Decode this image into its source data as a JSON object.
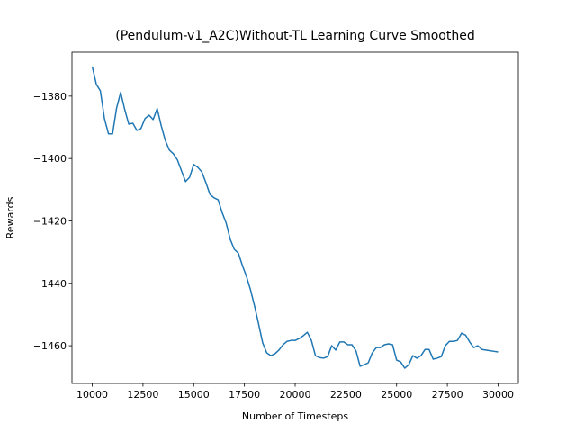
{
  "chart_data": {
    "type": "line",
    "title": "(Pendulum-v1_A2C)Without-TL Learning Curve Smoothed",
    "xlabel": "Number of Timesteps",
    "ylabel": "Rewards",
    "x": [
      10000,
      10200,
      10400,
      10600,
      10800,
      11000,
      11200,
      11400,
      11600,
      11800,
      12000,
      12200,
      12400,
      12600,
      12800,
      13000,
      13200,
      13400,
      13600,
      13800,
      14000,
      14200,
      14400,
      14600,
      14800,
      15000,
      15200,
      15400,
      15600,
      15800,
      16000,
      16200,
      16400,
      16600,
      16800,
      17000,
      17200,
      17400,
      17600,
      17800,
      18000,
      18200,
      18400,
      18600,
      18800,
      19000,
      19200,
      19400,
      19600,
      19800,
      20000,
      20200,
      20400,
      20600,
      20800,
      21000,
      21200,
      21400,
      21600,
      21800,
      22000,
      22200,
      22400,
      22600,
      22800,
      23000,
      23200,
      23400,
      23600,
      23800,
      24000,
      24200,
      24400,
      24600,
      24800,
      25000,
      25200,
      25400,
      25600,
      25800,
      26000,
      26200,
      26400,
      26600,
      26800,
      27000,
      27200,
      27400,
      27600,
      27800,
      28000,
      28200,
      28400,
      28600,
      28800,
      29000,
      29200,
      29400,
      29600,
      29800,
      30000
    ],
    "series": [
      {
        "name": "Rewards",
        "color": "#1f77b4",
        "values": [
          -1370.5,
          -1376.2,
          -1378.3,
          -1387.2,
          -1392.1,
          -1392.1,
          -1383.8,
          -1378.8,
          -1384.3,
          -1389,
          -1388.7,
          -1391,
          -1390.4,
          -1387.2,
          -1386.1,
          -1387.5,
          -1384,
          -1389.5,
          -1394.2,
          -1397.3,
          -1398.5,
          -1400.5,
          -1404,
          -1407.4,
          -1406,
          -1401.9,
          -1402.8,
          -1404.3,
          -1407.7,
          -1411.5,
          -1412.6,
          -1413.2,
          -1417.3,
          -1420.7,
          -1425.9,
          -1429.1,
          -1430.3,
          -1434.3,
          -1437.8,
          -1442.1,
          -1447.3,
          -1453.1,
          -1459.1,
          -1462.3,
          -1463.2,
          -1462.6,
          -1461.4,
          -1459.7,
          -1458.6,
          -1458.3,
          -1458.3,
          -1457.7,
          -1456.8,
          -1455.7,
          -1458.3,
          -1463.2,
          -1463.8,
          -1464,
          -1463.5,
          -1460,
          -1461.4,
          -1458.8,
          -1458.8,
          -1459.7,
          -1459.7,
          -1461.7,
          -1466.6,
          -1466.1,
          -1465.5,
          -1462.3,
          -1460.6,
          -1460.6,
          -1459.7,
          -1459.4,
          -1459.7,
          -1464.6,
          -1465.2,
          -1467.2,
          -1466.1,
          -1463.2,
          -1464,
          -1463.2,
          -1461.2,
          -1461.2,
          -1464.3,
          -1464,
          -1463.5,
          -1460,
          -1458.6,
          -1458.6,
          -1458.3,
          -1456,
          -1456.6,
          -1458.8,
          -1460.6,
          -1460,
          -1461.2,
          -1461.4,
          -1461.6,
          -1461.8,
          -1462
        ]
      }
    ],
    "xlim": [
      9000,
      31000
    ],
    "ylim": [
      -1472.1,
      -1365.9
    ],
    "xticks": [
      10000,
      12500,
      15000,
      17500,
      20000,
      22500,
      25000,
      27500,
      30000
    ],
    "yticks": [
      {
        "value": -1460,
        "label": "−1460"
      },
      {
        "value": -1440,
        "label": "−1440"
      },
      {
        "value": -1420,
        "label": "−1420"
      },
      {
        "value": -1400,
        "label": "−1400"
      },
      {
        "value": -1380,
        "label": "−1380"
      }
    ],
    "grid": false
  }
}
